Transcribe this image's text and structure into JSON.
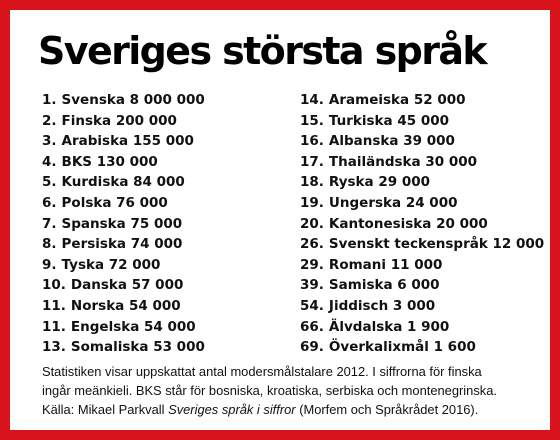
{
  "title": "Sveriges största språk",
  "languages_left": [
    {
      "rank": "1.",
      "name": "Svenska",
      "count": "8 000 000"
    },
    {
      "rank": "2.",
      "name": "Finska",
      "count": "200 000"
    },
    {
      "rank": "3.",
      "name": "Arabiska",
      "count": "155 000"
    },
    {
      "rank": "4.",
      "name": "BKS",
      "count": "130 000"
    },
    {
      "rank": "5.",
      "name": "Kurdiska",
      "count": "84 000"
    },
    {
      "rank": "6.",
      "name": "Polska",
      "count": "76 000"
    },
    {
      "rank": "7.",
      "name": "Spanska",
      "count": "75 000"
    },
    {
      "rank": "8.",
      "name": "Persiska",
      "count": "74 000"
    },
    {
      "rank": "9.",
      "name": "Tyska",
      "count": "72 000"
    },
    {
      "rank": "10.",
      "name": "Danska",
      "count": "57 000"
    },
    {
      "rank": "11.",
      "name": "Norska",
      "count": "54 000"
    },
    {
      "rank": "11.",
      "name": "Engelska",
      "count": "54 000"
    },
    {
      "rank": "13.",
      "name": "Somaliska",
      "count": "53 000"
    }
  ],
  "languages_right": [
    {
      "rank": "14.",
      "name": "Arameiska",
      "count": "52 000"
    },
    {
      "rank": "15.",
      "name": "Turkiska",
      "count": "45 000"
    },
    {
      "rank": "16.",
      "name": "Albanska",
      "count": "39 000"
    },
    {
      "rank": "17.",
      "name": "Thailändska",
      "count": "30 000"
    },
    {
      "rank": "18.",
      "name": "Ryska",
      "count": "29 000"
    },
    {
      "rank": "19.",
      "name": "Ungerska",
      "count": "24 000"
    },
    {
      "rank": "20.",
      "name": "Kantonesiska",
      "count": "20 000"
    },
    {
      "rank": "26.",
      "name": "Svenskt teckenspråk",
      "count": "12 000"
    },
    {
      "rank": "29.",
      "name": "Romani",
      "count": "11 000"
    },
    {
      "rank": "39.",
      "name": "Samiska",
      "count": "6 000"
    },
    {
      "rank": "54.",
      "name": "Jiddisch",
      "count": "3 000"
    },
    {
      "rank": "66.",
      "name": "Älvdalska",
      "count": "1 900"
    },
    {
      "rank": "69.",
      "name": "Överkalixmål",
      "count": "1 600"
    }
  ],
  "footnote": {
    "line1": "Statistiken visar uppskattat antal modersmålstalare 2012. I siffrorna för finska",
    "line2": "ingår meänkieli. BKS står för bosniska, kroatiska, serbiska och montenegrinska.",
    "source_prefix": "Källa: Mikael Parkvall ",
    "source_title": "Sveriges språk i siffror",
    "source_suffix": " (Morfem och Språkrådet 2016)."
  },
  "colors": {
    "border": "#d8131b",
    "text": "#111111",
    "background": "#ffffff"
  }
}
